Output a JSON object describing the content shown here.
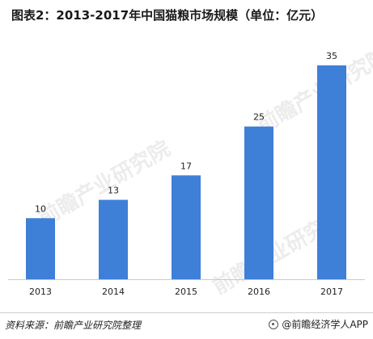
{
  "chart_data": {
    "type": "bar",
    "title": "图表2：2013-2017年中国猫粮市场规模（单位：亿元）",
    "categories": [
      "2013",
      "2014",
      "2015",
      "2016",
      "2017"
    ],
    "values": [
      10,
      13,
      17,
      25,
      35
    ],
    "data_labels": [
      "10",
      "13",
      "17",
      "25",
      "35"
    ],
    "ylim": [
      0,
      35
    ],
    "bar_color": "#3e7fd8",
    "grid": false,
    "legend": "none"
  },
  "watermark": "前瞻产业研究院",
  "footer": {
    "source": "资料来源：前瞻产业研究院整理",
    "brand": "@前瞻经济学人APP"
  }
}
